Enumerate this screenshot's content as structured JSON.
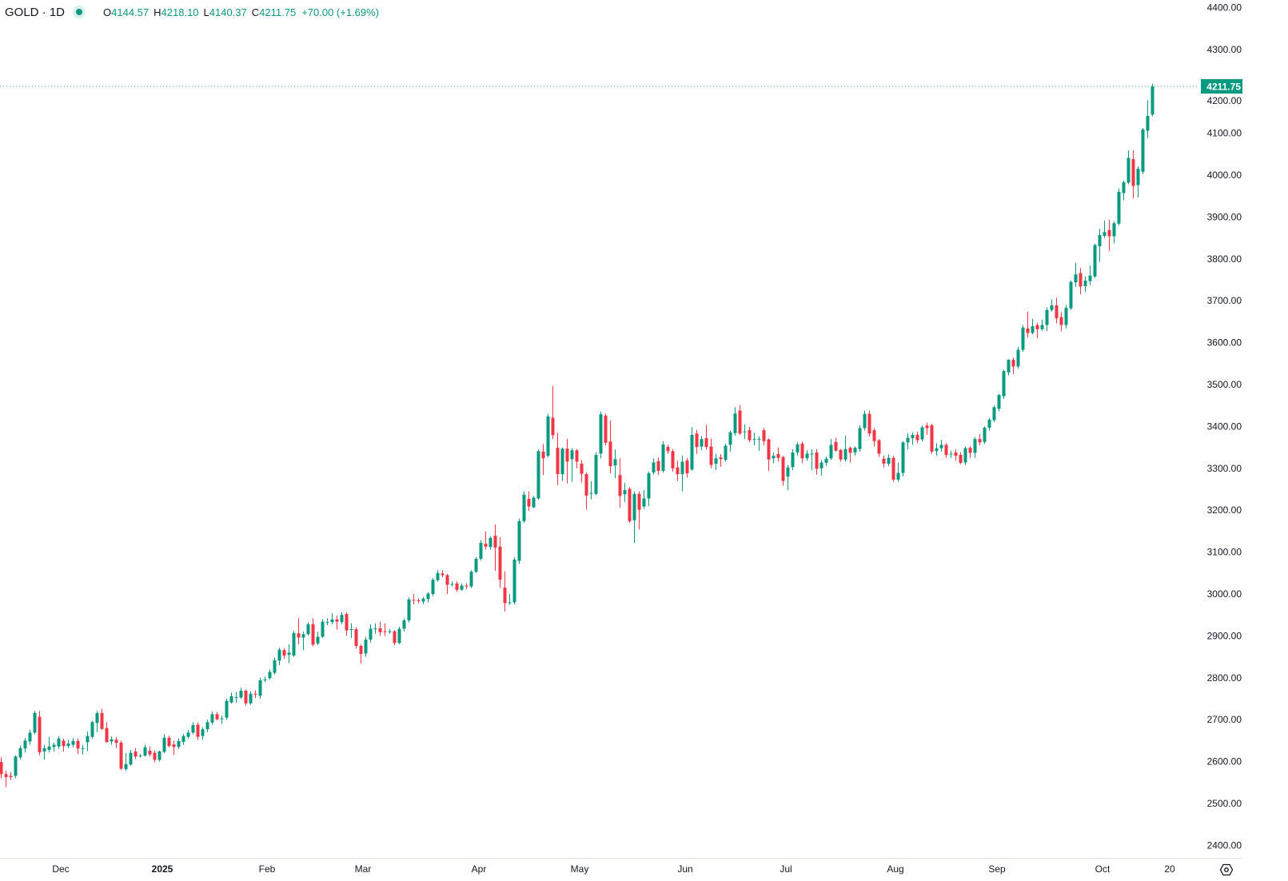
{
  "header": {
    "symbol": "GOLD · 1D",
    "status_icon": "market-open-dot",
    "open_key": "O",
    "open": "4144.57",
    "high_key": "H",
    "high": "4218.10",
    "low_key": "L",
    "low": "4140.37",
    "close_key": "C",
    "close": "4211.75",
    "change": "+70.00 (+1.69%)"
  },
  "colors": {
    "up": "#089981",
    "down": "#f23645",
    "last_price": "#089981",
    "axis_text": "#131722",
    "axis_line": "#e0e3eb"
  },
  "settings_icon": "gear-icon",
  "chart_data": {
    "type": "candlestick",
    "symbol": "GOLD",
    "interval": "1D",
    "last_price": "4211.75",
    "ylim": [
      2400,
      4400
    ],
    "y_ticks": [
      "2400.00",
      "2500.00",
      "2600.00",
      "2700.00",
      "2800.00",
      "2900.00",
      "3000.00",
      "3100.00",
      "3200.00",
      "3300.00",
      "3400.00",
      "3500.00",
      "3600.00",
      "3700.00",
      "3800.00",
      "3900.00",
      "4000.00",
      "4100.00",
      "4200.00",
      "4300.00",
      "4400.00"
    ],
    "x_ticks": [
      "Dec",
      "2025",
      "Feb",
      "Mar",
      "Apr",
      "May",
      "Jun",
      "Jul",
      "Aug",
      "Sep",
      "Oct",
      "20"
    ],
    "grid": false,
    "ohlc_fields": [
      "open",
      "high",
      "low",
      "close"
    ],
    "candles": [
      [
        2599,
        2610,
        2560,
        2570
      ],
      [
        2570,
        2578,
        2539,
        2563
      ],
      [
        2566,
        2575,
        2555,
        2563
      ],
      [
        2566,
        2615,
        2560,
        2612
      ],
      [
        2610,
        2638,
        2605,
        2632
      ],
      [
        2631,
        2656,
        2622,
        2650
      ],
      [
        2648,
        2676,
        2640,
        2669
      ],
      [
        2669,
        2721,
        2665,
        2716
      ],
      [
        2707,
        2721,
        2615,
        2622
      ],
      [
        2624,
        2640,
        2605,
        2632
      ],
      [
        2628,
        2659,
        2622,
        2636
      ],
      [
        2635,
        2645,
        2624,
        2640
      ],
      [
        2636,
        2661,
        2630,
        2655
      ],
      [
        2650,
        2655,
        2624,
        2637
      ],
      [
        2637,
        2652,
        2632,
        2643
      ],
      [
        2640,
        2656,
        2634,
        2649
      ],
      [
        2649,
        2655,
        2618,
        2631
      ],
      [
        2632,
        2640,
        2617,
        2632
      ],
      [
        2646,
        2672,
        2625,
        2661
      ],
      [
        2659,
        2697,
        2655,
        2694
      ],
      [
        2692,
        2721,
        2670,
        2716
      ],
      [
        2716,
        2726,
        2675,
        2678
      ],
      [
        2680,
        2694,
        2646,
        2646
      ],
      [
        2648,
        2660,
        2640,
        2653
      ],
      [
        2652,
        2658,
        2632,
        2645
      ],
      [
        2645,
        2650,
        2580,
        2583
      ],
      [
        2582,
        2620,
        2578,
        2594
      ],
      [
        2593,
        2628,
        2590,
        2621
      ],
      [
        2624,
        2632,
        2606,
        2612
      ],
      [
        2614,
        2618,
        2610,
        2614
      ],
      [
        2614,
        2640,
        2612,
        2634
      ],
      [
        2626,
        2636,
        2612,
        2617
      ],
      [
        2621,
        2627,
        2598,
        2604
      ],
      [
        2604,
        2626,
        2600,
        2624
      ],
      [
        2623,
        2665,
        2620,
        2657
      ],
      [
        2657,
        2662,
        2634,
        2637
      ],
      [
        2641,
        2650,
        2616,
        2635
      ],
      [
        2635,
        2655,
        2630,
        2649
      ],
      [
        2647,
        2666,
        2640,
        2661
      ],
      [
        2659,
        2675,
        2655,
        2669
      ],
      [
        2669,
        2694,
        2665,
        2687
      ],
      [
        2688,
        2694,
        2652,
        2659
      ],
      [
        2661,
        2682,
        2652,
        2677
      ],
      [
        2677,
        2700,
        2670,
        2694
      ],
      [
        2693,
        2720,
        2688,
        2713
      ],
      [
        2713,
        2718,
        2698,
        2701
      ],
      [
        2703,
        2710,
        2690,
        2703
      ],
      [
        2705,
        2750,
        2700,
        2745
      ],
      [
        2741,
        2765,
        2738,
        2756
      ],
      [
        2754,
        2766,
        2740,
        2754
      ],
      [
        2753,
        2776,
        2750,
        2769
      ],
      [
        2769,
        2772,
        2733,
        2739
      ],
      [
        2739,
        2768,
        2735,
        2762
      ],
      [
        2762,
        2770,
        2752,
        2760
      ],
      [
        2757,
        2800,
        2750,
        2794
      ],
      [
        2794,
        2803,
        2790,
        2796
      ],
      [
        2799,
        2820,
        2795,
        2814
      ],
      [
        2812,
        2848,
        2808,
        2842
      ],
      [
        2841,
        2872,
        2830,
        2867
      ],
      [
        2866,
        2870,
        2845,
        2853
      ],
      [
        2855,
        2880,
        2835,
        2860
      ],
      [
        2853,
        2912,
        2850,
        2907
      ],
      [
        2906,
        2942,
        2880,
        2896
      ],
      [
        2896,
        2910,
        2866,
        2904
      ],
      [
        2904,
        2932,
        2900,
        2928
      ],
      [
        2928,
        2942,
        2875,
        2879
      ],
      [
        2882,
        2910,
        2878,
        2898
      ],
      [
        2898,
        2940,
        2895,
        2934
      ],
      [
        2931,
        2942,
        2926,
        2933
      ],
      [
        2933,
        2954,
        2928,
        2939
      ],
      [
        2939,
        2948,
        2915,
        2934
      ],
      [
        2933,
        2956,
        2928,
        2950
      ],
      [
        2952,
        2956,
        2900,
        2913
      ],
      [
        2916,
        2930,
        2895,
        2916
      ],
      [
        2916,
        2920,
        2870,
        2876
      ],
      [
        2876,
        2880,
        2834,
        2857
      ],
      [
        2858,
        2898,
        2850,
        2891
      ],
      [
        2891,
        2928,
        2884,
        2917
      ],
      [
        2917,
        2930,
        2905,
        2918
      ],
      [
        2918,
        2934,
        2900,
        2909
      ],
      [
        2911,
        2930,
        2900,
        2909
      ],
      [
        2911,
        2916,
        2905,
        2911
      ],
      [
        2911,
        2914,
        2878,
        2883
      ],
      [
        2883,
        2922,
        2880,
        2917
      ],
      [
        2917,
        2942,
        2910,
        2937
      ],
      [
        2937,
        2992,
        2932,
        2987
      ],
      [
        2986,
        3000,
        2975,
        2985
      ],
      [
        2985,
        2990,
        2978,
        2984
      ],
      [
        2982,
        2993,
        2976,
        2989
      ],
      [
        2988,
        3004,
        2980,
        3001
      ],
      [
        3000,
        3038,
        2995,
        3034
      ],
      [
        3033,
        3057,
        3030,
        3050
      ],
      [
        3049,
        3057,
        3040,
        3045
      ],
      [
        3045,
        3048,
        3000,
        3022
      ],
      [
        3024,
        3030,
        3018,
        3024
      ],
      [
        3025,
        3030,
        3005,
        3010
      ],
      [
        3010,
        3025,
        3008,
        3020
      ],
      [
        3020,
        3026,
        3012,
        3018
      ],
      [
        3018,
        3057,
        3014,
        3053
      ],
      [
        3053,
        3088,
        3050,
        3084
      ],
      [
        3084,
        3128,
        3080,
        3122
      ],
      [
        3120,
        3149,
        3106,
        3113
      ],
      [
        3112,
        3138,
        3106,
        3134
      ],
      [
        3139,
        3166,
        3055,
        3111
      ],
      [
        3113,
        3136,
        3015,
        3034
      ],
      [
        3015,
        3054,
        2958,
        2978
      ],
      [
        2980,
        3000,
        2974,
        2980
      ],
      [
        2980,
        3088,
        2975,
        3082
      ],
      [
        3079,
        3180,
        3072,
        3174
      ],
      [
        3174,
        3245,
        3170,
        3237
      ],
      [
        3227,
        3245,
        3198,
        3209
      ],
      [
        3207,
        3234,
        3205,
        3230
      ],
      [
        3228,
        3345,
        3225,
        3341
      ],
      [
        3340,
        3358,
        3284,
        3324
      ],
      [
        3330,
        3430,
        3326,
        3424
      ],
      [
        3421,
        3497,
        3370,
        3379
      ],
      [
        3349,
        3385,
        3260,
        3286
      ],
      [
        3286,
        3350,
        3270,
        3347
      ],
      [
        3347,
        3370,
        3264,
        3316
      ],
      [
        3322,
        3348,
        3268,
        3343
      ],
      [
        3343,
        3346,
        3300,
        3316
      ],
      [
        3311,
        3320,
        3266,
        3287
      ],
      [
        3286,
        3290,
        3201,
        3235
      ],
      [
        3241,
        3269,
        3226,
        3241
      ],
      [
        3239,
        3338,
        3236,
        3332
      ],
      [
        3335,
        3435,
        3324,
        3429
      ],
      [
        3426,
        3430,
        3355,
        3361
      ],
      [
        3364,
        3414,
        3288,
        3305
      ],
      [
        3307,
        3345,
        3276,
        3322
      ],
      [
        3284,
        3324,
        3206,
        3234
      ],
      [
        3238,
        3265,
        3220,
        3248
      ],
      [
        3251,
        3255,
        3170,
        3174
      ],
      [
        3176,
        3245,
        3122,
        3239
      ],
      [
        3239,
        3245,
        3154,
        3201
      ],
      [
        3209,
        3248,
        3203,
        3228
      ],
      [
        3228,
        3292,
        3210,
        3288
      ],
      [
        3290,
        3324,
        3285,
        3314
      ],
      [
        3317,
        3326,
        3284,
        3294
      ],
      [
        3294,
        3365,
        3290,
        3357
      ],
      [
        3351,
        3356,
        3335,
        3341
      ],
      [
        3341,
        3346,
        3292,
        3300
      ],
      [
        3302,
        3318,
        3270,
        3286
      ],
      [
        3286,
        3330,
        3245,
        3316
      ],
      [
        3319,
        3325,
        3278,
        3288
      ],
      [
        3297,
        3398,
        3294,
        3380
      ],
      [
        3383,
        3392,
        3335,
        3351
      ],
      [
        3352,
        3377,
        3343,
        3370
      ],
      [
        3372,
        3404,
        3345,
        3351
      ],
      [
        3352,
        3371,
        3300,
        3308
      ],
      [
        3311,
        3335,
        3296,
        3324
      ],
      [
        3326,
        3334,
        3304,
        3322
      ],
      [
        3320,
        3358,
        3316,
        3354
      ],
      [
        3356,
        3390,
        3340,
        3386
      ],
      [
        3384,
        3446,
        3378,
        3431
      ],
      [
        3438,
        3451,
        3380,
        3383
      ],
      [
        3388,
        3405,
        3370,
        3388
      ],
      [
        3391,
        3399,
        3362,
        3367
      ],
      [
        3370,
        3385,
        3355,
        3370
      ],
      [
        3370,
        3376,
        3342,
        3370
      ],
      [
        3391,
        3396,
        3355,
        3365
      ],
      [
        3369,
        3372,
        3294,
        3321
      ],
      [
        3324,
        3338,
        3312,
        3330
      ],
      [
        3334,
        3350,
        3316,
        3325
      ],
      [
        3327,
        3330,
        3258,
        3270
      ],
      [
        3280,
        3308,
        3248,
        3302
      ],
      [
        3303,
        3346,
        3296,
        3338
      ],
      [
        3338,
        3362,
        3330,
        3357
      ],
      [
        3359,
        3364,
        3312,
        3324
      ],
      [
        3324,
        3343,
        3318,
        3335
      ],
      [
        3335,
        3346,
        3296,
        3335
      ],
      [
        3338,
        3346,
        3285,
        3299
      ],
      [
        3300,
        3320,
        3283,
        3314
      ],
      [
        3313,
        3328,
        3306,
        3323
      ],
      [
        3324,
        3370,
        3320,
        3356
      ],
      [
        3363,
        3373,
        3340,
        3342
      ],
      [
        3344,
        3346,
        3316,
        3321
      ],
      [
        3321,
        3378,
        3316,
        3346
      ],
      [
        3349,
        3352,
        3314,
        3337
      ],
      [
        3338,
        3352,
        3330,
        3349
      ],
      [
        3346,
        3403,
        3340,
        3396
      ],
      [
        3396,
        3438,
        3390,
        3430
      ],
      [
        3430,
        3438,
        3376,
        3383
      ],
      [
        3391,
        3396,
        3352,
        3365
      ],
      [
        3367,
        3370,
        3327,
        3335
      ],
      [
        3323,
        3330,
        3302,
        3311
      ],
      [
        3311,
        3333,
        3305,
        3325
      ],
      [
        3325,
        3330,
        3268,
        3273
      ],
      [
        3273,
        3314,
        3268,
        3289
      ],
      [
        3289,
        3365,
        3281,
        3362
      ],
      [
        3362,
        3384,
        3345,
        3373
      ],
      [
        3372,
        3386,
        3356,
        3380
      ],
      [
        3380,
        3388,
        3360,
        3367
      ],
      [
        3369,
        3402,
        3364,
        3398
      ],
      [
        3402,
        3409,
        3380,
        3396
      ],
      [
        3403,
        3406,
        3335,
        3340
      ],
      [
        3341,
        3360,
        3330,
        3348
      ],
      [
        3348,
        3368,
        3340,
        3356
      ],
      [
        3356,
        3360,
        3325,
        3332
      ],
      [
        3335,
        3342,
        3325,
        3335
      ],
      [
        3338,
        3345,
        3318,
        3330
      ],
      [
        3332,
        3338,
        3310,
        3313
      ],
      [
        3314,
        3352,
        3308,
        3348
      ],
      [
        3349,
        3353,
        3324,
        3337
      ],
      [
        3337,
        3375,
        3325,
        3370
      ],
      [
        3370,
        3382,
        3355,
        3362
      ],
      [
        3363,
        3400,
        3358,
        3397
      ],
      [
        3397,
        3420,
        3390,
        3416
      ],
      [
        3415,
        3450,
        3410,
        3446
      ],
      [
        3442,
        3478,
        3436,
        3475
      ],
      [
        3472,
        3536,
        3466,
        3532
      ],
      [
        3529,
        3560,
        3522,
        3559
      ],
      [
        3559,
        3564,
        3525,
        3543
      ],
      [
        3543,
        3590,
        3538,
        3583
      ],
      [
        3583,
        3642,
        3578,
        3636
      ],
      [
        3634,
        3674,
        3612,
        3623
      ],
      [
        3623,
        3657,
        3620,
        3639
      ],
      [
        3642,
        3648,
        3611,
        3632
      ],
      [
        3632,
        3655,
        3628,
        3642
      ],
      [
        3642,
        3684,
        3628,
        3678
      ],
      [
        3678,
        3703,
        3674,
        3689
      ],
      [
        3689,
        3707,
        3646,
        3658
      ],
      [
        3661,
        3673,
        3627,
        3642
      ],
      [
        3642,
        3690,
        3634,
        3683
      ],
      [
        3682,
        3748,
        3678,
        3745
      ],
      [
        3744,
        3790,
        3733,
        3763
      ],
      [
        3766,
        3778,
        3716,
        3734
      ],
      [
        3735,
        3758,
        3721,
        3748
      ],
      [
        3747,
        3784,
        3737,
        3760
      ],
      [
        3758,
        3836,
        3754,
        3833
      ],
      [
        3830,
        3872,
        3793,
        3857
      ],
      [
        3855,
        3891,
        3850,
        3864
      ],
      [
        3869,
        3893,
        3819,
        3854
      ],
      [
        3854,
        3889,
        3837,
        3885
      ],
      [
        3884,
        3968,
        3880,
        3960
      ],
      [
        3957,
        3987,
        3940,
        3983
      ],
      [
        3982,
        4059,
        3978,
        4041
      ],
      [
        4038,
        4059,
        3944,
        3974
      ],
      [
        3976,
        4021,
        3946,
        4015
      ],
      [
        4008,
        4112,
        4002,
        4109
      ],
      [
        4106,
        4179,
        4088,
        4141
      ],
      [
        4144.57,
        4218.1,
        4140.37,
        4211.75
      ]
    ]
  }
}
